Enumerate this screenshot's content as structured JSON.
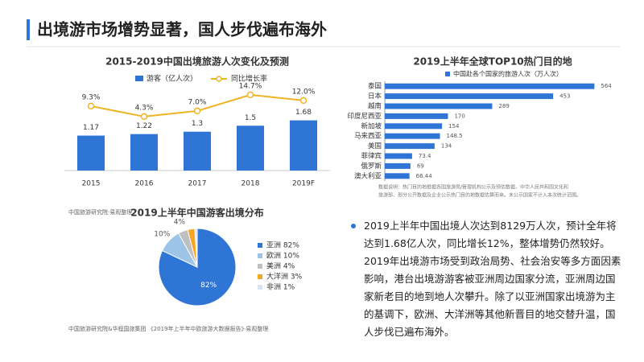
{
  "header": {
    "title": "出境游市场增势显著，国人步伐遍布海外"
  },
  "paragraph": "2019上半年中国出境人次达到8129万人次，预计全年将达到1.68亿人次，同比增长12%，整体增势仍然较好。2019年出境游市场受到政治局势、社会治安等多方面因素影响，港台出境游游客被亚洲周边国家分流，亚洲周边国家新老目的地到地人次攀升。除了以亚洲国家出境游为主的基调下，欧洲、大洋洲等其他新晋目的地交替升温，国人步伐已遍布海外。",
  "chart_data": [
    {
      "type": "bar_line",
      "title": "2015-2019中国出境旅游人次变化及预测",
      "categories": [
        "2015",
        "2016",
        "2017",
        "2018",
        "2019F"
      ],
      "series": [
        {
          "name": "游客（亿人次）",
          "color": "#2e75d6",
          "values": [
            1.17,
            1.22,
            1.3,
            1.5,
            1.68
          ]
        },
        {
          "name": "同比增长率",
          "color": "#f0b323",
          "axis": "y2",
          "values": [
            9.3,
            4.3,
            7.0,
            14.7,
            12.0
          ],
          "value_labels": [
            "9.3%",
            "4.3%",
            "7.0%",
            "14.7%",
            "12.0%"
          ]
        }
      ],
      "ylim": [
        0,
        3.5
      ],
      "y2lim": [
        -21.5,
        28.5
      ],
      "source": "中国旅游研究院·易观整理"
    },
    {
      "type": "hbar",
      "title": "2019上半年全球TOP10热门目的地",
      "categories": [
        "泰国",
        "日本",
        "越南",
        "印度尼西亚",
        "新加坡",
        "马来西亚",
        "美国",
        "菲律宾",
        "俄罗斯",
        "澳大利亚"
      ],
      "series": [
        {
          "name": "中国赴各个国家的旅游人次（万人次）",
          "color": "#2e75d6",
          "values": [
            564,
            453,
            289,
            170,
            154,
            148.5,
            134,
            73.4,
            69,
            66.44
          ]
        }
      ],
      "xlim": [
        0,
        600
      ],
      "note": [
        "数据说明：热门目的地根据各国旅游局/管理机构公示及预估数据、中华人民共和国文化和",
        "旅游部、部分公开数据及企业公示热门目的地数据估算而来。未公示国家不计入本次统计范围。"
      ]
    },
    {
      "type": "pie",
      "title": "2019上半年中国游客出境分布",
      "categories": [
        "亚洲",
        "欧洲",
        "美洲",
        "大洋洲",
        "非洲"
      ],
      "values": [
        82,
        10,
        4,
        3,
        1
      ],
      "value_labels": [
        "82%",
        "10%",
        "4%",
        null,
        null
      ],
      "legend_labels": [
        "亚洲 82%",
        "欧洲 10%",
        "美洲 4%",
        "大洋洲 3%",
        "非洲 1%"
      ],
      "colors": [
        "#2e75d6",
        "#9dc3e6",
        "#bfbfbf",
        "#f5a623",
        "#d6e4f2"
      ],
      "source": "中国旅游研究院&华程国旅集团 《2019年上半年中欧旅游大数据报告》·易观整理"
    }
  ]
}
